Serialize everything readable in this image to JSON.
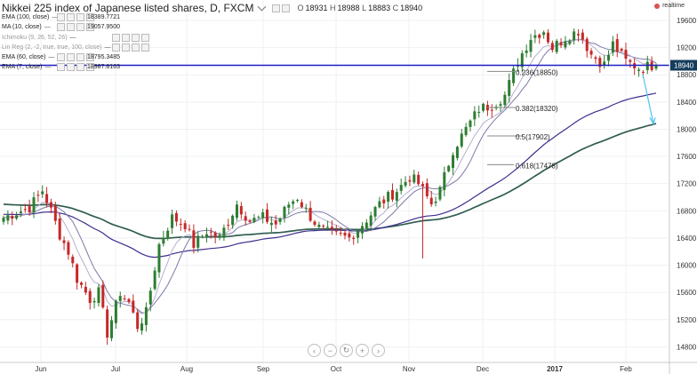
{
  "header": {
    "title": "Nikkei 225 index of Japanese listed shares, D, FXCM",
    "ohlc": {
      "o_label": "O",
      "o": "18931",
      "h_label": "H",
      "h": "18988",
      "l_label": "L",
      "l": "18883",
      "c_label": "C",
      "c": "18940"
    },
    "realtime_label": "realtime"
  },
  "indicators": [
    {
      "name": "EMA (100, close)",
      "value": "18389.7721",
      "icon": "settings-squares",
      "dim": false
    },
    {
      "name": "MA (10, close)",
      "value": "19057.9500",
      "icon": "settings-squares",
      "dim": false
    },
    {
      "name": "Ichimoku (9, 26, 52, 26)",
      "value": "",
      "icon": "settings-squares",
      "dim": true
    },
    {
      "name": "Lin Reg (2, -2, true, true, 100, close)",
      "value": "",
      "icon": "settings-squares",
      "dim": true
    },
    {
      "name": "EMA (60, close)",
      "value": "18795.3485",
      "icon": "settings-squares",
      "dim": false
    },
    {
      "name": "EMA (7, close)",
      "value": "18987.8163",
      "icon": "settings-squares",
      "dim": false
    }
  ],
  "navigation": [
    "scroll-left",
    "zoom-out",
    "reset",
    "zoom-in",
    "scroll-right"
  ],
  "colors": {
    "up": "#2e7d32",
    "down": "#c62828",
    "ema100": "#2f5d50",
    "ma10": "#7d7aa8",
    "ema60": "#3d2f8e",
    "ema7": "#b7afcf",
    "hline": "#1f1fc4",
    "arrow": "#4fc3f7",
    "fib": "#888888"
  },
  "chart_data": {
    "type": "candlestick",
    "title": "Nikkei 225 index of Japanese listed shares, D, FXCM",
    "x_tick_labels": [
      "Jun",
      "Jul",
      "Aug",
      "Sep",
      "Oct",
      "Nov",
      "Dec",
      "2017",
      "Feb"
    ],
    "y_tick_labels": [
      "14800",
      "15200",
      "15600",
      "16000",
      "16400",
      "16800",
      "17200",
      "17600",
      "18000",
      "18400",
      "18800",
      "19200",
      "19600"
    ],
    "ylim": [
      14570,
      19900
    ],
    "last_price": "18940",
    "fibonacci": [
      {
        "label": "0.236(18850)",
        "value": 18850
      },
      {
        "label": "0.382(18320)",
        "value": 18320
      },
      {
        "label": "0.5(17902)",
        "value": 17902
      },
      {
        "label": "0.618(17478)",
        "value": 17478
      }
    ],
    "anchors": [
      {
        "i": 0,
        "v": 16700
      },
      {
        "i": 6,
        "v": 16850
      },
      {
        "i": 9,
        "v": 17100
      },
      {
        "i": 11,
        "v": 16800
      },
      {
        "i": 13,
        "v": 16450
      },
      {
        "i": 15,
        "v": 16200
      },
      {
        "i": 17,
        "v": 15800
      },
      {
        "i": 20,
        "v": 15500
      },
      {
        "i": 22,
        "v": 15600
      },
      {
        "i": 24,
        "v": 15000
      },
      {
        "i": 27,
        "v": 15600
      },
      {
        "i": 29,
        "v": 15450
      },
      {
        "i": 31,
        "v": 15100
      },
      {
        "i": 33,
        "v": 15300
      },
      {
        "i": 36,
        "v": 16300
      },
      {
        "i": 39,
        "v": 16700
      },
      {
        "i": 42,
        "v": 16600
      },
      {
        "i": 44,
        "v": 16300
      },
      {
        "i": 47,
        "v": 16500
      },
      {
        "i": 50,
        "v": 16400
      },
      {
        "i": 54,
        "v": 16900
      },
      {
        "i": 57,
        "v": 16650
      },
      {
        "i": 60,
        "v": 16700
      },
      {
        "i": 63,
        "v": 16600
      },
      {
        "i": 66,
        "v": 16900
      },
      {
        "i": 68,
        "v": 17000
      },
      {
        "i": 70,
        "v": 16800
      },
      {
        "i": 73,
        "v": 16550
      },
      {
        "i": 76,
        "v": 16450
      },
      {
        "i": 80,
        "v": 16400
      },
      {
        "i": 83,
        "v": 16600
      },
      {
        "i": 87,
        "v": 16900
      },
      {
        "i": 91,
        "v": 17100
      },
      {
        "i": 94,
        "v": 17300
      },
      {
        "i": 96,
        "v": 17200
      },
      {
        "i": 99,
        "v": 16900
      },
      {
        "i": 101,
        "v": 17100
      },
      {
        "i": 104,
        "v": 17700
      },
      {
        "i": 107,
        "v": 18000
      },
      {
        "i": 110,
        "v": 18300
      },
      {
        "i": 113,
        "v": 18350
      },
      {
        "i": 116,
        "v": 18500
      },
      {
        "i": 119,
        "v": 19000
      },
      {
        "i": 122,
        "v": 19350
      },
      {
        "i": 125,
        "v": 19450
      },
      {
        "i": 127,
        "v": 19200
      },
      {
        "i": 130,
        "v": 19350
      },
      {
        "i": 133,
        "v": 19450
      },
      {
        "i": 136,
        "v": 19100
      },
      {
        "i": 139,
        "v": 18950
      },
      {
        "i": 141,
        "v": 19250
      },
      {
        "i": 144,
        "v": 19000
      },
      {
        "i": 147,
        "v": 18900
      },
      {
        "i": 150,
        "v": 18940
      }
    ]
  }
}
